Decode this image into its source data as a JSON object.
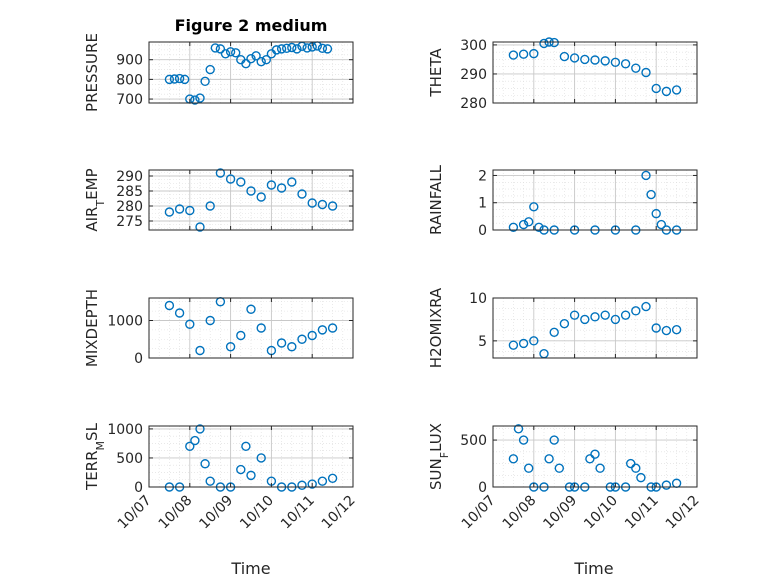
{
  "figure": {
    "title": "Figure 2 medium",
    "xlabel": "Time",
    "date_ticks": [
      "10/07",
      "10/08",
      "10/09",
      "10/10",
      "10/11",
      "10/12"
    ]
  },
  "style": {
    "marker_color": "#0072BD",
    "axis_color": "#262626",
    "grid_color": "#dcdcdc"
  },
  "chart_data": [
    {
      "type": "scatter",
      "ylabel": "PRESSURE",
      "ylim": [
        680,
        990
      ],
      "yticks": [
        700,
        800,
        900
      ],
      "xlim": [
        "10/07",
        "10/12"
      ],
      "x": [
        "10/07 12:00",
        "10/07 15:00",
        "10/07 18:00",
        "10/07 21:00",
        "10/08 00:00",
        "10/08 03:00",
        "10/08 06:00",
        "10/08 09:00",
        "10/08 12:00",
        "10/08 15:00",
        "10/08 18:00",
        "10/08 21:00",
        "10/09 00:00",
        "10/09 03:00",
        "10/09 06:00",
        "10/09 09:00",
        "10/09 12:00",
        "10/09 15:00",
        "10/09 18:00",
        "10/09 21:00",
        "10/10 00:00",
        "10/10 03:00",
        "10/10 06:00",
        "10/10 09:00",
        "10/10 12:00",
        "10/10 15:00",
        "10/10 18:00",
        "10/10 21:00",
        "10/11 00:00",
        "10/11 03:00",
        "10/11 06:00",
        "10/11 09:00"
      ],
      "y": [
        800,
        802,
        804,
        800,
        700,
        695,
        705,
        790,
        850,
        960,
        955,
        930,
        940,
        935,
        900,
        880,
        905,
        920,
        890,
        900,
        930,
        950,
        955,
        958,
        962,
        955,
        968,
        960,
        965,
        970,
        958,
        955
      ]
    },
    {
      "type": "scatter",
      "ylabel": "THETA",
      "ylim": [
        280,
        301
      ],
      "yticks": [
        280,
        290,
        300
      ],
      "xlim": [
        "10/07",
        "10/12"
      ],
      "x": [
        "10/07 12:00",
        "10/07 18:00",
        "10/08 00:00",
        "10/08 06:00",
        "10/08 09:00",
        "10/08 12:00",
        "10/08 18:00",
        "10/09 00:00",
        "10/09 06:00",
        "10/09 12:00",
        "10/09 18:00",
        "10/10 00:00",
        "10/10 06:00",
        "10/10 12:00",
        "10/10 18:00",
        "10/11 00:00",
        "10/11 06:00",
        "10/11 12:00"
      ],
      "y": [
        296.5,
        296.8,
        297,
        300.5,
        301,
        300.8,
        296,
        295.5,
        295,
        294.8,
        294.5,
        294,
        293.5,
        292,
        290.5,
        285,
        284,
        284.5
      ]
    },
    {
      "type": "scatter",
      "ylabel": "AIR_TEMP",
      "ylim": [
        272,
        292
      ],
      "yticks": [
        275,
        280,
        285,
        290
      ],
      "xlim": [
        "10/07",
        "10/12"
      ],
      "x": [
        "10/07 12:00",
        "10/07 18:00",
        "10/08 00:00",
        "10/08 06:00",
        "10/08 12:00",
        "10/08 18:00",
        "10/09 00:00",
        "10/09 06:00",
        "10/09 12:00",
        "10/09 18:00",
        "10/10 00:00",
        "10/10 06:00",
        "10/10 12:00",
        "10/10 18:00",
        "10/11 00:00",
        "10/11 06:00",
        "10/11 12:00"
      ],
      "y": [
        278,
        279,
        278.5,
        273,
        280,
        291,
        289,
        288,
        285,
        283,
        287,
        286,
        288,
        284,
        281,
        280.5,
        280
      ]
    },
    {
      "type": "scatter",
      "ylabel": "RAINFALL",
      "ylim": [
        0,
        2.2
      ],
      "yticks": [
        0,
        1,
        2
      ],
      "xlim": [
        "10/07",
        "10/12"
      ],
      "x": [
        "10/07 12:00",
        "10/07 18:00",
        "10/07 21:00",
        "10/08 00:00",
        "10/08 03:00",
        "10/08 06:00",
        "10/08 12:00",
        "10/09 00:00",
        "10/09 12:00",
        "10/10 00:00",
        "10/10 12:00",
        "10/10 18:00",
        "10/10 21:00",
        "10/11 00:00",
        "10/11 03:00",
        "10/11 06:00",
        "10/11 12:00"
      ],
      "y": [
        0.1,
        0.2,
        0.3,
        0.85,
        0.1,
        0,
        0,
        0,
        0,
        0,
        0,
        2.0,
        1.3,
        0.6,
        0.2,
        0,
        0
      ]
    },
    {
      "type": "scatter",
      "ylabel": "MIXDEPTH",
      "ylim": [
        0,
        1600
      ],
      "yticks": [
        0,
        1000
      ],
      "xlim": [
        "10/07",
        "10/12"
      ],
      "x": [
        "10/07 12:00",
        "10/07 18:00",
        "10/08 00:00",
        "10/08 06:00",
        "10/08 12:00",
        "10/08 18:00",
        "10/09 00:00",
        "10/09 06:00",
        "10/09 12:00",
        "10/09 18:00",
        "10/10 00:00",
        "10/10 06:00",
        "10/10 12:00",
        "10/10 18:00",
        "10/11 00:00",
        "10/11 06:00",
        "10/11 12:00"
      ],
      "y": [
        1400,
        1200,
        900,
        200,
        1000,
        1500,
        300,
        600,
        1300,
        800,
        200,
        400,
        300,
        500,
        600,
        750,
        800
      ]
    },
    {
      "type": "scatter",
      "ylabel": "H2OMIXRA",
      "ylim": [
        3,
        10
      ],
      "yticks": [
        5,
        10
      ],
      "xlim": [
        "10/07",
        "10/12"
      ],
      "x": [
        "10/07 12:00",
        "10/07 18:00",
        "10/08 00:00",
        "10/08 06:00",
        "10/08 12:00",
        "10/08 18:00",
        "10/09 00:00",
        "10/09 06:00",
        "10/09 12:00",
        "10/09 18:00",
        "10/10 00:00",
        "10/10 06:00",
        "10/10 12:00",
        "10/10 18:00",
        "10/11 00:00",
        "10/11 06:00",
        "10/11 12:00"
      ],
      "y": [
        4.5,
        4.7,
        5,
        3.5,
        6,
        7,
        8,
        7.5,
        7.8,
        8,
        7.5,
        8,
        8.5,
        9,
        6.5,
        6.2,
        6.3
      ]
    },
    {
      "type": "scatter",
      "ylabel": "TERR_MSL",
      "ylim": [
        0,
        1050
      ],
      "yticks": [
        0,
        500,
        1000
      ],
      "xlim": [
        "10/07",
        "10/12"
      ],
      "x": [
        "10/07 12:00",
        "10/07 18:00",
        "10/08 00:00",
        "10/08 03:00",
        "10/08 06:00",
        "10/08 09:00",
        "10/08 12:00",
        "10/08 18:00",
        "10/09 00:00",
        "10/09 06:00",
        "10/09 09:00",
        "10/09 12:00",
        "10/09 18:00",
        "10/10 00:00",
        "10/10 06:00",
        "10/10 12:00",
        "10/10 18:00",
        "10/11 00:00",
        "10/11 06:00",
        "10/11 12:00"
      ],
      "y": [
        0,
        0,
        700,
        800,
        1000,
        400,
        100,
        0,
        0,
        300,
        700,
        200,
        500,
        100,
        0,
        0,
        30,
        50,
        100,
        150
      ]
    },
    {
      "type": "scatter",
      "ylabel": "SUN_FLUX",
      "ylim": [
        0,
        650
      ],
      "yticks": [
        0,
        500
      ],
      "xlim": [
        "10/07",
        "10/12"
      ],
      "x": [
        "10/07 12:00",
        "10/07 15:00",
        "10/07 18:00",
        "10/07 21:00",
        "10/08 00:00",
        "10/08 06:00",
        "10/08 09:00",
        "10/08 12:00",
        "10/08 15:00",
        "10/08 21:00",
        "10/09 00:00",
        "10/09 06:00",
        "10/09 09:00",
        "10/09 12:00",
        "10/09 15:00",
        "10/09 21:00",
        "10/10 00:00",
        "10/10 06:00",
        "10/10 09:00",
        "10/10 12:00",
        "10/10 15:00",
        "10/10 21:00",
        "10/11 00:00",
        "10/11 06:00",
        "10/11 12:00"
      ],
      "y": [
        300,
        620,
        500,
        200,
        0,
        0,
        300,
        500,
        200,
        0,
        0,
        0,
        300,
        350,
        200,
        0,
        0,
        0,
        250,
        200,
        100,
        0,
        0,
        20,
        40
      ]
    }
  ]
}
